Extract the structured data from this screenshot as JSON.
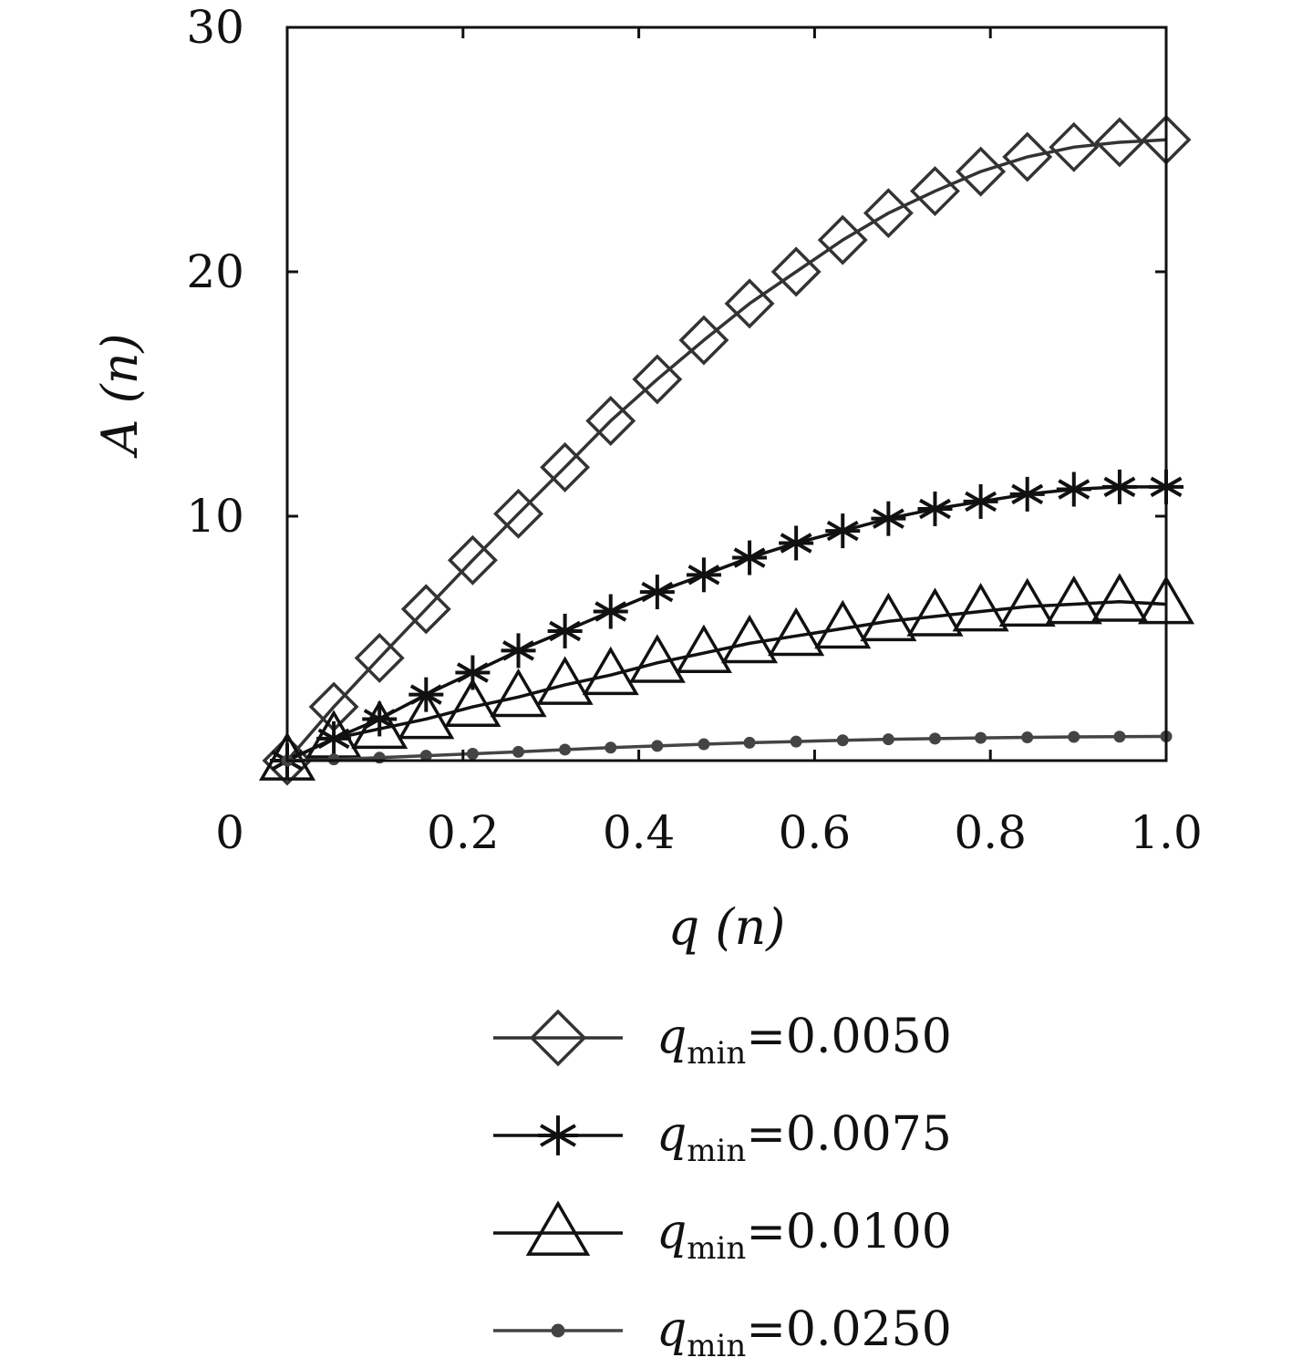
{
  "chart_data": {
    "type": "line",
    "xlabel": "q (n)",
    "ylabel": "A (n)",
    "xlim": [
      0.0,
      1.0
    ],
    "ylim": [
      0,
      30
    ],
    "x_ticks": [
      "0",
      "0.2",
      "0.4",
      "0.6",
      "0.8",
      "1.0"
    ],
    "y_ticks": [
      "10",
      "20",
      "30"
    ],
    "grid": false,
    "legend_position": "bottom",
    "x": [
      0.0,
      0.053,
      0.105,
      0.158,
      0.211,
      0.263,
      0.316,
      0.368,
      0.421,
      0.474,
      0.526,
      0.579,
      0.632,
      0.684,
      0.737,
      0.789,
      0.842,
      0.895,
      0.947,
      1.0
    ],
    "series": [
      {
        "label_var": "q",
        "label_sub": "min",
        "label_value": "=0.0050",
        "marker": "diamond",
        "color": "#333333",
        "values": [
          0.0,
          2.2,
          4.2,
          6.2,
          8.2,
          10.1,
          12.0,
          13.9,
          15.6,
          17.2,
          18.7,
          20.0,
          21.3,
          22.4,
          23.3,
          24.1,
          24.7,
          25.1,
          25.3,
          25.4
        ]
      },
      {
        "label_var": "q",
        "label_sub": "min",
        "label_value": "=0.0075",
        "marker": "asterisk",
        "color": "#111111",
        "values": [
          0.0,
          0.9,
          1.7,
          2.7,
          3.6,
          4.5,
          5.3,
          6.1,
          6.9,
          7.6,
          8.3,
          8.9,
          9.4,
          9.9,
          10.3,
          10.6,
          10.9,
          11.1,
          11.2,
          11.2
        ]
      },
      {
        "label_var": "q",
        "label_sub": "min",
        "label_value": "=0.0100",
        "marker": "triangle",
        "color": "#111111",
        "values": [
          0.0,
          0.9,
          1.3,
          1.7,
          2.2,
          2.6,
          3.1,
          3.5,
          4.0,
          4.4,
          4.8,
          5.1,
          5.4,
          5.7,
          5.9,
          6.1,
          6.3,
          6.4,
          6.5,
          6.4
        ]
      },
      {
        "label_var": "q",
        "label_sub": "min",
        "label_value": "=0.0250",
        "marker": "dot",
        "color": "#444444",
        "values": [
          0.0,
          0.05,
          0.12,
          0.2,
          0.28,
          0.36,
          0.45,
          0.53,
          0.6,
          0.67,
          0.73,
          0.78,
          0.83,
          0.87,
          0.9,
          0.93,
          0.95,
          0.97,
          0.98,
          0.99
        ]
      }
    ]
  }
}
